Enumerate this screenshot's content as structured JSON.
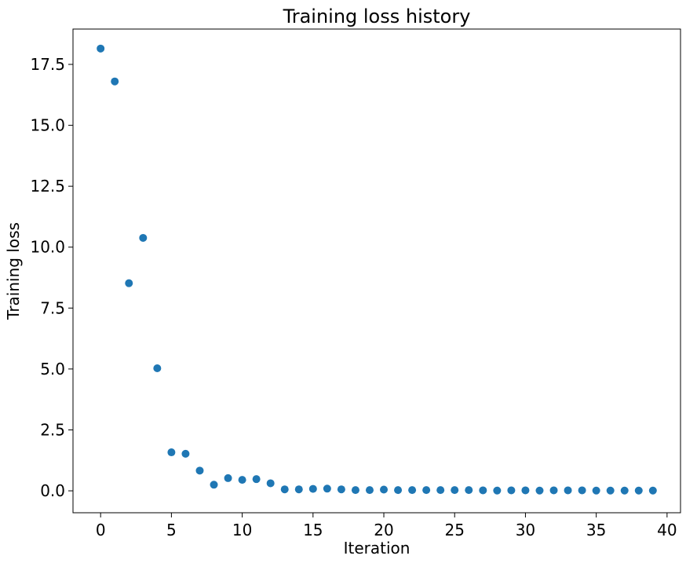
{
  "chart_data": {
    "type": "scatter",
    "title": "Training loss history",
    "xlabel": "Iteration",
    "ylabel": "Training loss",
    "xlim": [
      -1.95,
      40.95
    ],
    "ylim": [
      -0.9,
      18.95
    ],
    "xticks": [
      0,
      5,
      10,
      15,
      20,
      25,
      30,
      35,
      40
    ],
    "xtick_labels": [
      "0",
      "5",
      "10",
      "15",
      "20",
      "25",
      "30",
      "35",
      "40"
    ],
    "yticks": [
      0.0,
      2.5,
      5.0,
      7.5,
      10.0,
      12.5,
      15.0,
      17.5
    ],
    "ytick_labels": [
      "0.0",
      "2.5",
      "5.0",
      "7.5",
      "10.0",
      "12.5",
      "15.0",
      "17.5"
    ],
    "grid": false,
    "marker_color": "#1f77b4",
    "series": [
      {
        "x": [
          0,
          1,
          2,
          3,
          4,
          5,
          6,
          7,
          8,
          9,
          10,
          11,
          12,
          13,
          14,
          15,
          16,
          17,
          18,
          19,
          20,
          21,
          22,
          23,
          24,
          25,
          26,
          27,
          28,
          29,
          30,
          31,
          32,
          33,
          34,
          35,
          36,
          37,
          38,
          39
        ],
        "y": [
          18.15,
          16.8,
          8.52,
          10.38,
          5.03,
          1.58,
          1.52,
          0.83,
          0.25,
          0.52,
          0.45,
          0.48,
          0.31,
          0.06,
          0.06,
          0.08,
          0.09,
          0.06,
          0.03,
          0.03,
          0.05,
          0.03,
          0.03,
          0.03,
          0.03,
          0.03,
          0.03,
          0.02,
          0.01,
          0.02,
          0.02,
          0.01,
          0.02,
          0.02,
          0.02,
          0.01,
          0.01,
          0.01,
          0.01,
          0.01
        ]
      }
    ]
  }
}
